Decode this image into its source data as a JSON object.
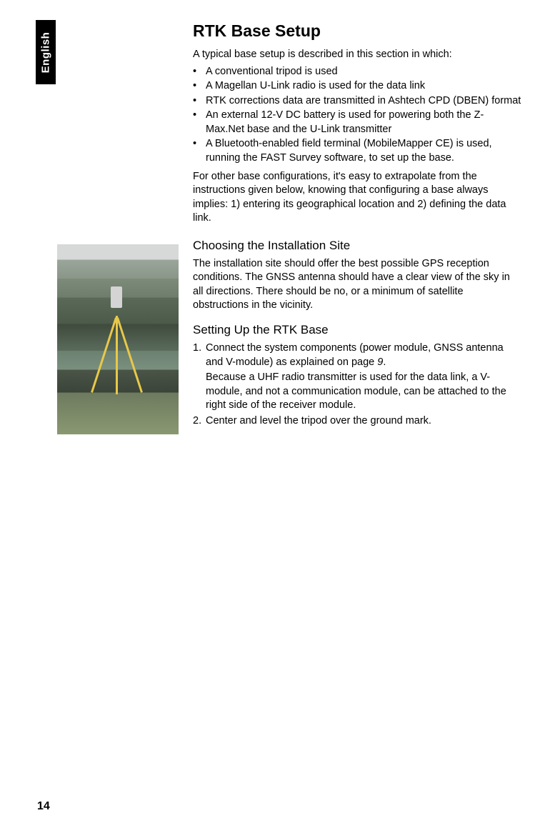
{
  "tab": {
    "label": "English"
  },
  "title": "RTK Base Setup",
  "intro": "A typical base setup is described in this section in which:",
  "bullets": [
    "A conventional tripod is used",
    "A Magellan U-Link radio is used for the data link",
    "RTK corrections data are transmitted in Ashtech CPD (DBEN) format",
    "An external 12-V DC battery is used for powering both the Z-Max.Net base and the U-Link transmitter",
    "A Bluetooth-enabled field terminal (MobileMapper CE) is used, running the FAST Survey software, to set up the base."
  ],
  "followup": "For other base configurations, it's easy to extrapolate from the instructions given below, knowing that configuring a base always implies: 1) entering its geographical location and 2) defining the data link.",
  "section1": {
    "heading": "Choosing the Installation Site",
    "body": "The installation site should offer the best possible GPS reception conditions. The GNSS antenna should have a clear view of the sky in all directions. There should be no, or a minimum of satellite obstructions in the vicinity."
  },
  "section2": {
    "heading": "Setting Up the RTK Base",
    "step1a": "Connect the system components (power module, GNSS antenna and V-module) as explained on page ",
    "step1_ref": "9",
    "step1_end": ".",
    "step1b": "Because a UHF radio transmitter is used for the data link, a V-module, and not a communication module, can be attached to the right side of the receiver module.",
    "step2": "Center and level the tripod over the ground mark."
  },
  "page_number": "14"
}
